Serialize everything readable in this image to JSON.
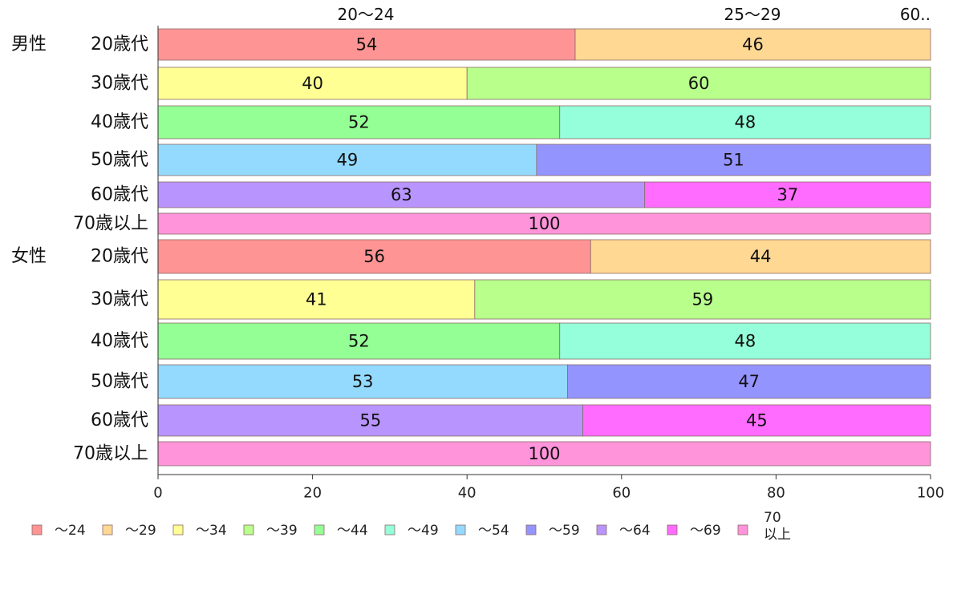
{
  "chart_data": {
    "type": "bar",
    "orientation": "horizontal",
    "stacked": true,
    "xlim": [
      0,
      100
    ],
    "xticks": [
      0,
      20,
      40,
      60,
      80,
      100
    ],
    "grid": false,
    "legend_position": "bottom",
    "top_labels": [
      "20〜24",
      "25〜29",
      "60.."
    ],
    "legend": [
      "〜24",
      "〜29",
      "〜34",
      "〜39",
      "〜44",
      "〜49",
      "〜54",
      "〜59",
      "〜64",
      "〜69",
      "70\n以上"
    ],
    "colors": [
      "#FF9494",
      "#FFD894",
      "#FFFF94",
      "#B8FF8C",
      "#94FF94",
      "#94FFDA",
      "#94DAFF",
      "#9494FF",
      "#B894FF",
      "#FF6CFF",
      "#FF94DA"
    ],
    "rows": [
      {
        "group": "男性",
        "label": "20歳代",
        "segments": [
          {
            "series": 0,
            "value": 54
          },
          {
            "series": 1,
            "value": 46
          }
        ]
      },
      {
        "group": "",
        "label": "30歳代",
        "segments": [
          {
            "series": 2,
            "value": 40
          },
          {
            "series": 3,
            "value": 60
          }
        ]
      },
      {
        "group": "",
        "label": "40歳代",
        "segments": [
          {
            "series": 4,
            "value": 52
          },
          {
            "series": 5,
            "value": 48
          }
        ]
      },
      {
        "group": "",
        "label": "50歳代",
        "segments": [
          {
            "series": 6,
            "value": 49
          },
          {
            "series": 7,
            "value": 51
          }
        ]
      },
      {
        "group": "",
        "label": "60歳代",
        "segments": [
          {
            "series": 8,
            "value": 63
          },
          {
            "series": 9,
            "value": 37
          }
        ]
      },
      {
        "group": "",
        "label": "70歳以上",
        "segments": [
          {
            "series": 10,
            "value": 100
          }
        ]
      },
      {
        "group": "女性",
        "label": "20歳代",
        "segments": [
          {
            "series": 0,
            "value": 56
          },
          {
            "series": 1,
            "value": 44
          }
        ]
      },
      {
        "group": "",
        "label": "30歳代",
        "segments": [
          {
            "series": 2,
            "value": 41
          },
          {
            "series": 3,
            "value": 59
          }
        ]
      },
      {
        "group": "",
        "label": "40歳代",
        "segments": [
          {
            "series": 4,
            "value": 52
          },
          {
            "series": 5,
            "value": 48
          }
        ]
      },
      {
        "group": "",
        "label": "50歳代",
        "segments": [
          {
            "series": 6,
            "value": 53
          },
          {
            "series": 7,
            "value": 47
          }
        ]
      },
      {
        "group": "",
        "label": "60歳代",
        "segments": [
          {
            "series": 8,
            "value": 55
          },
          {
            "series": 9,
            "value": 45
          }
        ]
      },
      {
        "group": "",
        "label": "70歳以上",
        "segments": [
          {
            "series": 10,
            "value": 100
          }
        ]
      }
    ]
  }
}
